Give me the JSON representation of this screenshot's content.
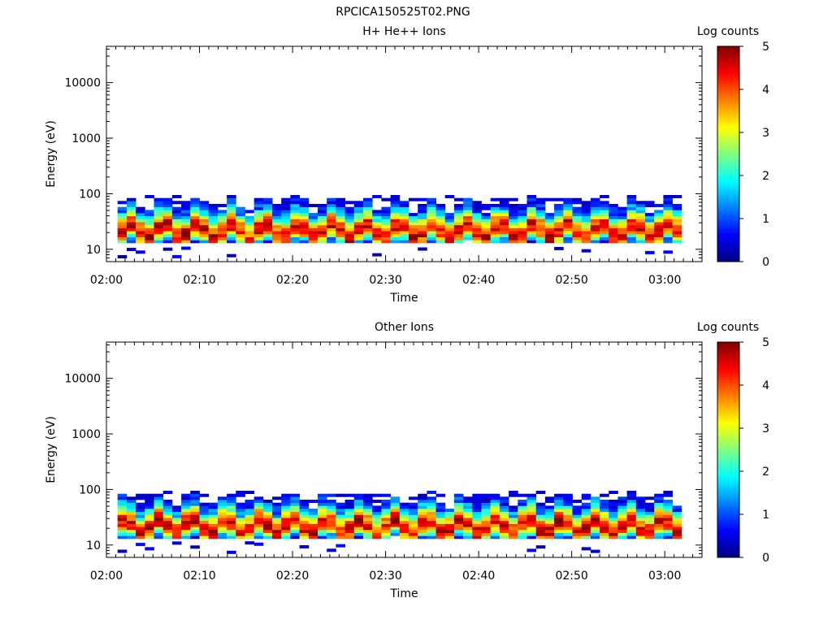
{
  "figure_title": "RPCICA150525T02.PNG",
  "chart_data": [
    {
      "type": "heatmap",
      "title": "H+ He++ Ions",
      "xlabel": "Time",
      "ylabel": "Energy (eV)",
      "x_ticks": [
        "02:00",
        "02:10",
        "02:20",
        "02:30",
        "02:40",
        "02:50",
        "03:00"
      ],
      "x_range_minutes": [
        0,
        64
      ],
      "y_scale": "log",
      "y_range": [
        6,
        45000
      ],
      "y_ticks": [
        10,
        100,
        1000,
        10000
      ],
      "y_tick_labels": [
        "10",
        "100",
        "1000",
        "10000"
      ],
      "colorbar": {
        "label": "Log counts",
        "range": [
          0,
          5
        ],
        "ticks": [
          "0",
          "1",
          "2",
          "3",
          "4",
          "5"
        ]
      },
      "populated_energy_range_eV": [
        13,
        95
      ],
      "time_coverage_minutes": [
        1.2,
        61.8
      ],
      "peak_log_counts_profile": [
        4.6,
        4.7,
        4.5,
        4.8,
        4.6,
        4.7,
        4.4,
        4.8,
        4.7,
        4.5,
        4.6,
        4.3,
        4.8,
        4.2,
        4.1,
        4.6,
        4.8,
        4.4,
        4.5,
        4.6,
        4.7,
        4.5,
        4.3,
        4.6,
        4.4,
        4.8,
        4.5,
        4.6,
        4.3,
        4.2,
        4.6,
        4.1,
        4.7,
        4.5,
        4.0,
        4.4,
        4.7,
        4.6,
        4.3,
        4.5,
        4.8,
        4.6,
        4.4,
        4.5,
        4.2,
        4.6,
        4.4,
        4.7,
        4.5,
        4.6,
        4.3,
        4.4,
        4.6,
        4.5,
        4.7,
        4.5,
        4.3,
        4.6,
        4.4,
        4.8,
        4.5,
        4.6
      ]
    },
    {
      "type": "heatmap",
      "title": "Other Ions",
      "xlabel": "Time",
      "ylabel": "Energy (eV)",
      "x_ticks": [
        "02:00",
        "02:10",
        "02:20",
        "02:30",
        "02:40",
        "02:50",
        "03:00"
      ],
      "x_range_minutes": [
        0,
        64
      ],
      "y_scale": "log",
      "y_range": [
        6,
        45000
      ],
      "y_ticks": [
        10,
        100,
        1000,
        10000
      ],
      "y_tick_labels": [
        "10",
        "100",
        "1000",
        "10000"
      ],
      "colorbar": {
        "label": "Log counts",
        "range": [
          0,
          5
        ],
        "ticks": [
          "0",
          "1",
          "2",
          "3",
          "4",
          "5"
        ]
      },
      "populated_energy_range_eV": [
        13,
        95
      ],
      "time_coverage_minutes": [
        1.2,
        61.8
      ],
      "peak_log_counts_profile": [
        4.5,
        4.6,
        4.4,
        4.7,
        4.8,
        4.6,
        4.5,
        4.8,
        4.6,
        4.4,
        4.7,
        4.5,
        4.6,
        4.3,
        4.4,
        4.7,
        4.6,
        4.8,
        4.5,
        4.4,
        4.6,
        4.7,
        4.5,
        4.3,
        4.4,
        4.7,
        4.6,
        4.5,
        4.2,
        4.3,
        4.6,
        4.2,
        4.4,
        4.6,
        4.3,
        4.5,
        4.7,
        4.8,
        4.4,
        4.6,
        4.5,
        4.7,
        4.6,
        4.4,
        4.3,
        4.7,
        4.5,
        4.6,
        4.8,
        4.4,
        4.3,
        4.5,
        4.6,
        4.7,
        4.4,
        4.6,
        4.3,
        4.5,
        4.6,
        4.7,
        4.4,
        4.6
      ]
    }
  ]
}
